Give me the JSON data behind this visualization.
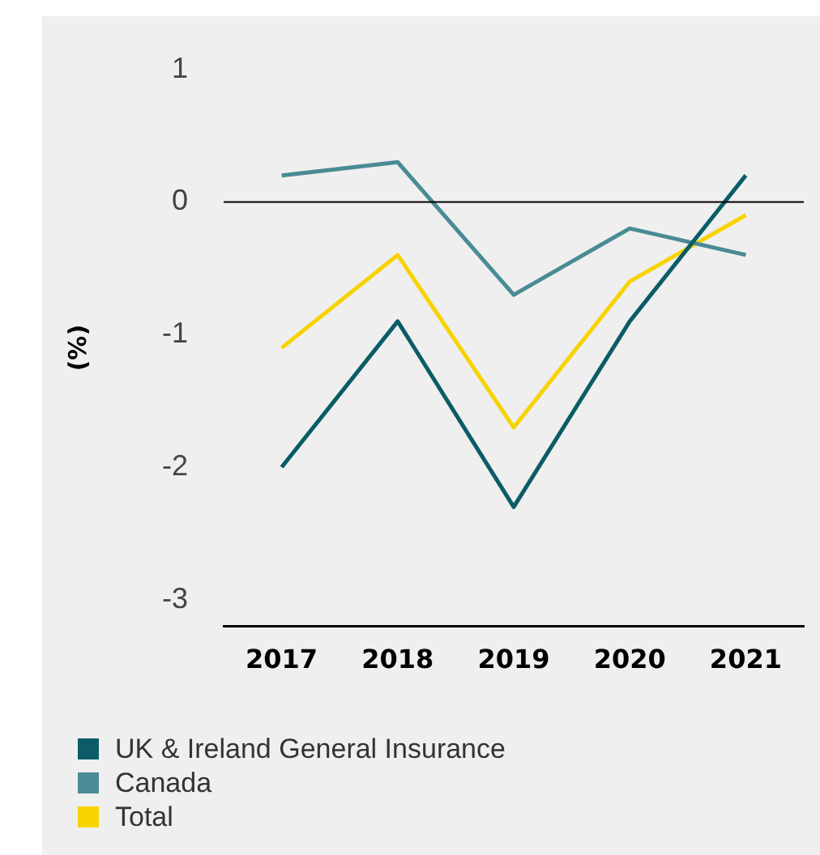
{
  "chart_data": {
    "type": "line",
    "ylabel": "(%)",
    "categories": [
      "2017",
      "2018",
      "2019",
      "2020",
      "2021"
    ],
    "series": [
      {
        "name": "UK & Ireland General Insurance",
        "color": "#0b5c66",
        "values": [
          -2.0,
          -0.9,
          -2.3,
          -0.9,
          0.2
        ]
      },
      {
        "name": "Canada",
        "color": "#4a8b95",
        "values": [
          0.2,
          0.3,
          -0.7,
          -0.2,
          -0.4
        ]
      },
      {
        "name": "Total",
        "color": "#f7d300",
        "values": [
          -1.1,
          -0.4,
          -1.7,
          -0.6,
          -0.1
        ]
      }
    ],
    "ylim": [
      -3.2,
      1
    ],
    "yticks": [
      -3,
      -2,
      -1,
      0,
      1
    ],
    "grid": false,
    "legend": "bottom",
    "marker": "none",
    "line_style": "solid",
    "ref_lines": [
      {
        "axis": "y",
        "value": 0,
        "color": "#000000"
      }
    ]
  }
}
